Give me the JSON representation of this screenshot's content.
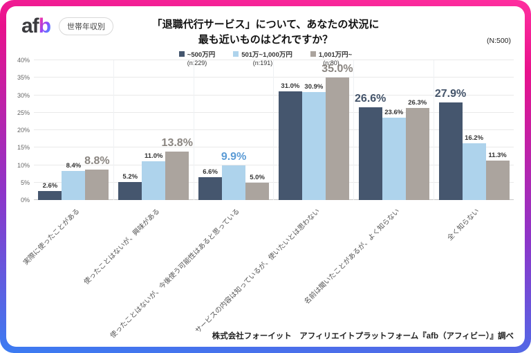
{
  "header": {
    "logo_af": "af",
    "logo_b": "b",
    "badge": "世帯年収別",
    "title_line1": "「退職代行サービス」について、あなたの状況に",
    "title_line2": "最も近いものはどれですか？",
    "sample": "(N:500)"
  },
  "legend": [
    {
      "label": "~500万円",
      "n": "(n:229)",
      "color": "#45566e"
    },
    {
      "label": "501万~1,000万円",
      "n": "(n:191)",
      "color": "#aed3ec"
    },
    {
      "label": "1,001万円~",
      "n": "(n:80)",
      "color": "#aba49e"
    }
  ],
  "chart_data": {
    "type": "bar",
    "title": "「退職代行サービス」について、あなたの状況に最も近いものはどれですか？",
    "xlabel": "",
    "ylabel": "",
    "ylim": [
      0,
      40
    ],
    "ytick_step": 5,
    "yticks": [
      "0%",
      "5%",
      "10%",
      "15%",
      "20%",
      "25%",
      "30%",
      "35%",
      "40%"
    ],
    "grid": true,
    "legend_position": "top-center",
    "categories": [
      "実際に使ったことがある",
      "使ったことはないが、興味がある",
      "使ったことはないが、今後使う可能性はあると思っている",
      "サービスの内容は知っているが、使いたいとは思わない",
      "名前は聞いたことがあるが、よく知らない",
      "全く知らない"
    ],
    "series": [
      {
        "name": "~500万円",
        "n": 229,
        "color": "#45566e",
        "values": [
          2.6,
          5.2,
          6.6,
          31.0,
          26.6,
          27.9
        ]
      },
      {
        "name": "501万~1,000万円",
        "n": 191,
        "color": "#aed3ec",
        "values": [
          8.4,
          11.0,
          9.9,
          30.9,
          23.6,
          16.2
        ]
      },
      {
        "name": "1,001万円~",
        "n": 80,
        "color": "#aba49e",
        "values": [
          8.8,
          13.8,
          5.0,
          35.0,
          26.3,
          11.3
        ]
      }
    ],
    "emphasis_series_by_category": [
      2,
      2,
      1,
      2,
      0,
      0
    ],
    "emphasis_label_colors": [
      "#44546a",
      "#5b9bd5",
      "#8a8580"
    ]
  },
  "footer": "株式会社フォーイット　アフィリエイトプラットフォーム『afb（アフィビー）』調べ"
}
